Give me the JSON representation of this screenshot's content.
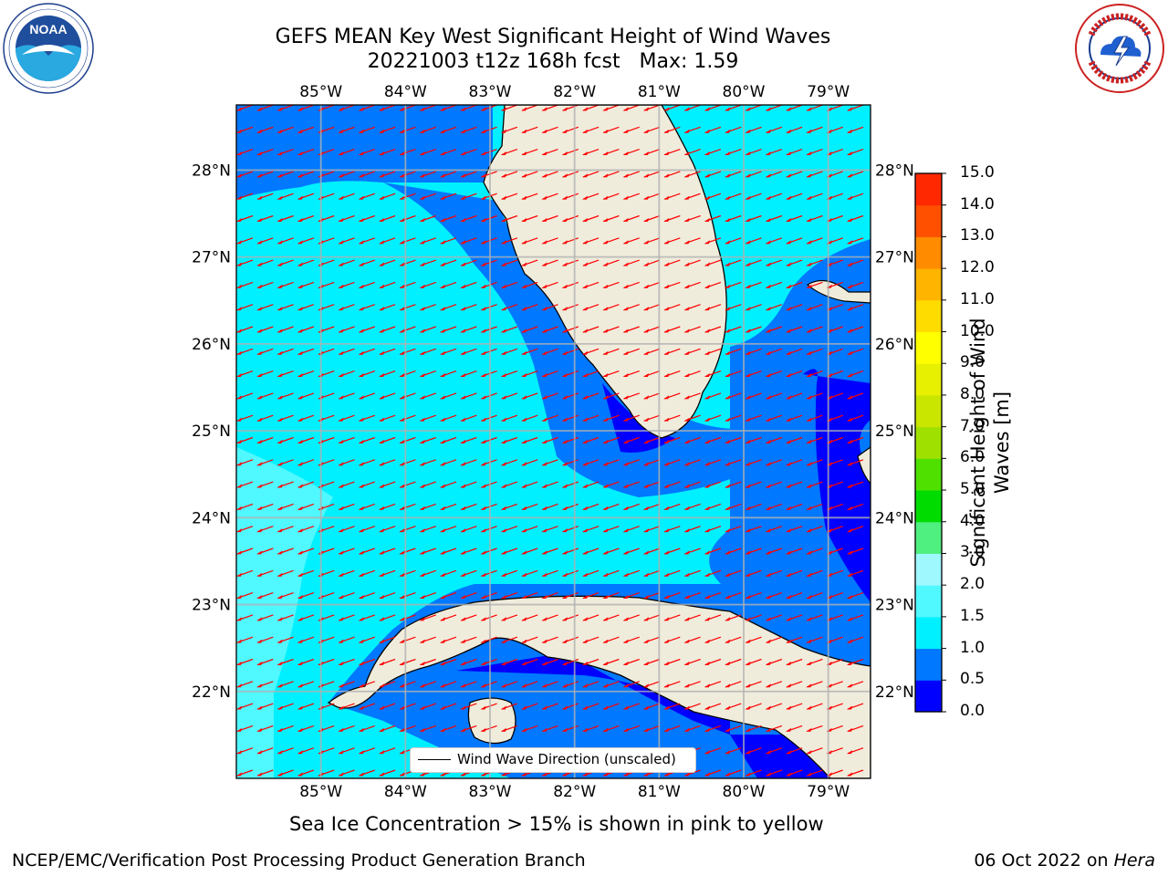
{
  "title_line1": "GEFS MEAN Key West Significant Height of Wind Waves",
  "title_line2": "20221003 t12z 168h fcst   Max: 1.59",
  "logos": {
    "left": "noaa-logo",
    "right": "national-weather-service-logo"
  },
  "map": {
    "lon_ticks": [
      "85°W",
      "84°W",
      "83°W",
      "82°W",
      "81°W",
      "80°W",
      "79°W"
    ],
    "lat_ticks": [
      "22°N",
      "23°N",
      "24°N",
      "25°N",
      "26°N",
      "27°N",
      "28°N"
    ],
    "lon_range": [
      -86,
      -78.5
    ],
    "lat_range": [
      21,
      28.75
    ],
    "legend_label": "Wind Wave Direction (unscaled)",
    "arrow_color": "#ff0000",
    "land_color": "#efecdc"
  },
  "colorbar": {
    "title": "Significant Height of Wind Waves [m]",
    "title_line1": "Significant Height of Wind",
    "title_line2": "Waves [m]",
    "tick_labels": [
      "0.0",
      "0.5",
      "1.0",
      "1.5",
      "2.0",
      "3.0",
      "4.0",
      "5.0",
      "6.0",
      "7.0",
      "8.0",
      "9.0",
      "10.0",
      "11.0",
      "12.0",
      "13.0",
      "14.0",
      "15.0"
    ],
    "colors": [
      "#0000ff",
      "#0a3cff",
      "#0078ff",
      "#00f0ff",
      "#50f8ff",
      "#a0f8ff",
      "#50f080",
      "#00dc00",
      "#50e000",
      "#a0e000",
      "#c8e600",
      "#e6f000",
      "#ffff00",
      "#ffdc00",
      "#ffb400",
      "#ff8c00",
      "#ff5000",
      "#ff2800",
      "#ff0000"
    ]
  },
  "footer_center": "Sea Ice Concentration > 15% is shown in pink to yellow",
  "footer_left": "NCEP/EMC/Verification Post Processing Product Generation Branch",
  "footer_date": "06 Oct 2022 on",
  "footer_machine": "Hera"
}
